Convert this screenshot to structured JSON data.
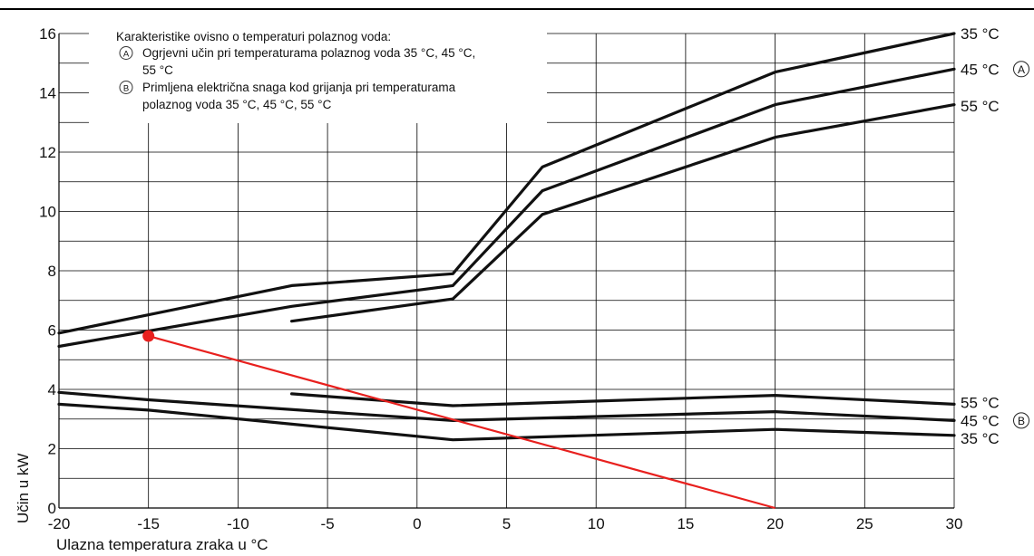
{
  "chart_data": {
    "type": "line",
    "xlabel": "Ulazna temperatura zraka u °C",
    "ylabel": "Učin u kW",
    "xlim": [
      -20,
      30
    ],
    "ylim": [
      0,
      16
    ],
    "xticks": [
      -20,
      -15,
      -10,
      -5,
      0,
      5,
      10,
      15,
      20,
      25,
      30
    ],
    "yticks": [
      0,
      2,
      4,
      6,
      8,
      10,
      12,
      14,
      16
    ],
    "x_tick_labels": [
      "-20",
      "-15",
      "-10",
      "-5",
      "0",
      "5",
      "10",
      "15",
      "20",
      "25",
      "30"
    ],
    "y_tick_labels": [
      "0",
      "2",
      "4",
      "6",
      "8",
      "10",
      "12",
      "14",
      "16"
    ],
    "grid": true,
    "legend": {
      "title": "Karakteristike ovisno o temperaturi polaznog voda:",
      "items": [
        {
          "marker": "A",
          "text_lines": [
            "Ogrjevni učin pri temperaturama polaznog voda 35 °C, 45 °C,",
            "55 °C"
          ]
        },
        {
          "marker": "B",
          "text_lines": [
            "Primljena električna snaga kod grijanja pri temperaturama",
            "polaznog voda 35 °C, 45 °C, 55 °C"
          ]
        }
      ]
    },
    "series": [
      {
        "name": "35 °C",
        "group": "A",
        "x": [
          -20,
          -7,
          2,
          7,
          20,
          30
        ],
        "y": [
          5.9,
          7.5,
          7.9,
          11.5,
          14.7,
          16.0
        ]
      },
      {
        "name": "45 °C",
        "group": "A",
        "x": [
          -20,
          -7,
          2,
          7,
          20,
          30
        ],
        "y": [
          5.45,
          6.8,
          7.5,
          10.7,
          13.6,
          14.8
        ]
      },
      {
        "name": "55 °C",
        "group": "A",
        "x": [
          -7,
          2,
          7,
          20,
          30
        ],
        "y": [
          6.3,
          7.05,
          9.9,
          12.5,
          13.6
        ]
      },
      {
        "name": "55 °C",
        "group": "B",
        "x": [
          -7,
          2,
          20,
          30
        ],
        "y": [
          3.85,
          3.45,
          3.8,
          3.5
        ]
      },
      {
        "name": "45 °C",
        "group": "B",
        "x": [
          -20,
          -15,
          2,
          20,
          30
        ],
        "y": [
          3.9,
          3.65,
          2.95,
          3.25,
          2.95
        ]
      },
      {
        "name": "35 °C",
        "group": "B",
        "x": [
          -20,
          -15,
          2,
          20,
          30
        ],
        "y": [
          3.5,
          3.3,
          2.3,
          2.65,
          2.45
        ]
      }
    ],
    "end_labels": [
      {
        "text": "35 °C",
        "y": 16.0
      },
      {
        "text": "45 °C",
        "y": 14.8,
        "marker": "A"
      },
      {
        "text": "55 °C",
        "y": 13.55
      },
      {
        "text": "55 °C",
        "y": 3.55
      },
      {
        "text": "45 °C",
        "y": 2.95,
        "marker": "B"
      },
      {
        "text": "35 °C",
        "y": 2.35
      }
    ],
    "annotation": {
      "point": {
        "x": -15,
        "y": 5.8
      },
      "line_to": {
        "x": 20,
        "y": 0
      },
      "color": "#e8201e"
    }
  }
}
